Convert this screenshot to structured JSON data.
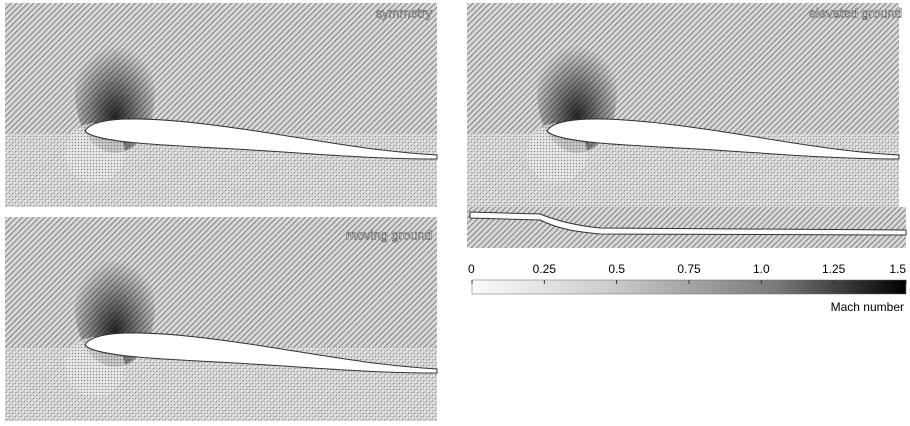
{
  "panels": [
    {
      "label": "symmetry"
    },
    {
      "label": "moving ground"
    },
    {
      "label": "elevated ground"
    }
  ],
  "colorbar": {
    "title": "Mach number",
    "range": [
      0,
      1.5
    ],
    "ticks": [
      0,
      0.25,
      0.5,
      0.75,
      {
        "value": 1,
        "label": "1.0"
      },
      1.25,
      1.5
    ]
  }
}
